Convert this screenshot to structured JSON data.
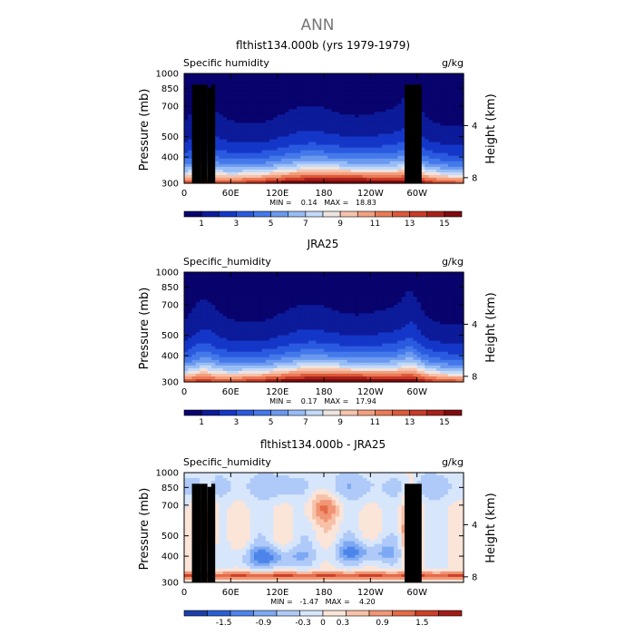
{
  "figure_title": "ANN",
  "chart_data": [
    {
      "type": "heatmap",
      "title": "flthist134.000b (yrs 1979-1979)",
      "variable_label": "Specific humidity",
      "units": "g/kg",
      "ylabel": "Pressure (mb)",
      "ylabel_right": "Height (km)",
      "x_ticks": [
        "0",
        "60E",
        "120E",
        "180",
        "120W",
        "60W"
      ],
      "x_tick_values": [
        0,
        60,
        120,
        180,
        240,
        300
      ],
      "xlim": [
        0,
        360
      ],
      "y_ticks": [
        300,
        400,
        500,
        700,
        850,
        1000
      ],
      "ylim": [
        1000,
        300
      ],
      "height_ticks": [
        8,
        4
      ],
      "stats_text": "MIN =    0.14   MAX =   18.83",
      "min": 0.14,
      "max": 18.83,
      "colorbar_ticks": [
        "1",
        "3",
        "5",
        "7",
        "9",
        "11",
        "13",
        "15"
      ],
      "colorbar_range": [
        0,
        16
      ],
      "mode": "abs",
      "topography": [
        [
          10,
          22,
          885
        ],
        [
          22,
          30,
          885
        ],
        [
          30,
          35,
          855
        ],
        [
          35,
          40,
          885
        ],
        [
          284,
          298,
          885
        ],
        [
          298,
          306,
          885
        ]
      ]
    },
    {
      "type": "heatmap",
      "title": "JRA25",
      "variable_label": "Specific_humidity",
      "units": "g/kg",
      "ylabel": "Pressure (mb)",
      "ylabel_right": "Height (km)",
      "x_ticks": [
        "0",
        "60E",
        "120E",
        "180",
        "120W",
        "60W"
      ],
      "x_tick_values": [
        0,
        60,
        120,
        180,
        240,
        300
      ],
      "xlim": [
        0,
        360
      ],
      "y_ticks": [
        300,
        400,
        500,
        700,
        850,
        1000
      ],
      "ylim": [
        1000,
        300
      ],
      "height_ticks": [
        8,
        4
      ],
      "stats_text": "MIN =    0.17   MAX =   17.94",
      "min": 0.17,
      "max": 17.94,
      "colorbar_ticks": [
        "1",
        "3",
        "5",
        "7",
        "9",
        "11",
        "13",
        "15"
      ],
      "colorbar_range": [
        0,
        16
      ],
      "mode": "abs",
      "topography": []
    },
    {
      "type": "heatmap",
      "title": "flthist134.000b - JRA25",
      "variable_label": "Specific_humidity",
      "units": "g/kg",
      "ylabel": "Pressure (mb)",
      "ylabel_right": "Height (km)",
      "x_ticks": [
        "0",
        "60E",
        "120E",
        "180",
        "120W",
        "60W"
      ],
      "x_tick_values": [
        0,
        60,
        120,
        180,
        240,
        300
      ],
      "xlim": [
        0,
        360
      ],
      "y_ticks": [
        300,
        400,
        500,
        700,
        850,
        1000
      ],
      "ylim": [
        1000,
        300
      ],
      "height_ticks": [
        8,
        4
      ],
      "stats_text": "MIN =   -1.47   MAX =    4.20",
      "min": -1.47,
      "max": 4.2,
      "colorbar_ticks": [
        "-1.5",
        "-0.9",
        "-0.3",
        "0",
        "0.3",
        "0.9",
        "1.5"
      ],
      "colorbar_range": [
        -2.1,
        2.1
      ],
      "mode": "diff",
      "topography": [
        [
          10,
          22,
          885
        ],
        [
          22,
          30,
          885
        ],
        [
          30,
          35,
          855
        ],
        [
          35,
          40,
          885
        ],
        [
          284,
          298,
          885
        ],
        [
          298,
          306,
          885
        ]
      ]
    }
  ],
  "colormaps": {
    "abs": [
      "#08036d",
      "#0c1b99",
      "#1537c8",
      "#2a5ae0",
      "#4479ea",
      "#6b99f0",
      "#98bdf5",
      "#c3d9f8",
      "#eee4e0",
      "#f7c3ad",
      "#f2a07f",
      "#ea7b56",
      "#dd5a3a",
      "#c93a28",
      "#a8221b",
      "#7f0b0e"
    ],
    "diff": [
      "#1a3fa8",
      "#2b5fd3",
      "#4d85ea",
      "#7da9f3",
      "#afcaf8",
      "#d7e6fb",
      "#fbe4d8",
      "#f7c1a8",
      "#f19675",
      "#e46a48",
      "#cb4027",
      "#a11d15"
    ]
  }
}
